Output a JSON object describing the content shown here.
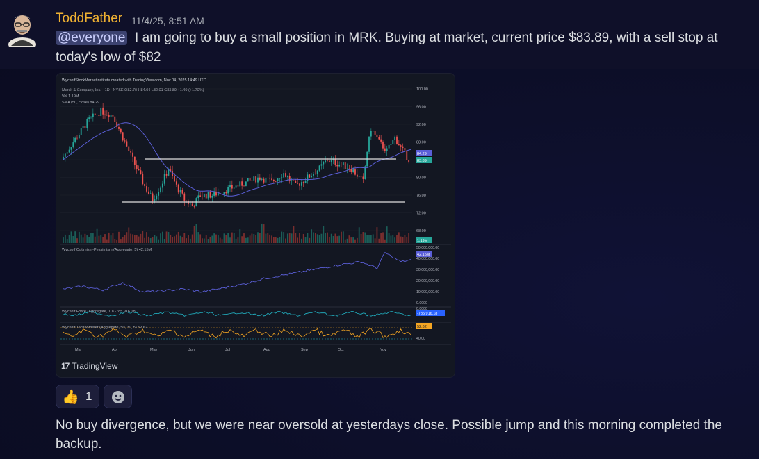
{
  "message": {
    "username": "ToddFather",
    "timestamp": "11/4/25, 8:51 AM",
    "mention": "@everyone",
    "text_line1": "I am going to buy a small position in MRK.  Buying at market, current price $83.89, with a sell stop at",
    "text_line2": "today's low of $82",
    "username_color": "#f0b232"
  },
  "embed": {
    "header": "WyckoffStockMarketInstitute created with TradingView.com, Nov 04, 2025 14:49 UTC",
    "symbol_line": "Merck & Company, Inc. · 1D · NYSE  O82.70 H84.04 L82.01 C83.89 +1.40 (+1.70%)",
    "vol_label": "Vol  1.19M",
    "sma_label": "SMA (50, close)  84.29",
    "wyckoff_op": "Wyckoff Optimism-Pessimism (Aggregate, 5)  42.15M",
    "wyckoff_force": "Wyckoff Force (Aggregate, 10)  -785,916.18",
    "wyckoff_tech": "Wyckoff Technometer (Aggregate, 50, 30, 5)  52.62",
    "price_ticks": [
      "100.00",
      "96.00",
      "92.00",
      "88.00",
      "84.00",
      "80.00",
      "76.00",
      "72.00",
      "68.00"
    ],
    "price_badges": {
      "sma": "84.29",
      "close": "83.89",
      "vol": "1.19M"
    },
    "op_ticks": [
      "50,000,000.00",
      "40,000,000.00",
      "30,000,000.00",
      "20,000,000.00",
      "10,000,000.00",
      "0.0000"
    ],
    "op_badge": "42.15M",
    "force_ticks": [
      "0.0000"
    ],
    "force_badge": "-785,916.18",
    "tech_ticks": [
      "40.00"
    ],
    "tech_badge": "52.62",
    "months": [
      "Mar",
      "Apr",
      "May",
      "Jun",
      "Jul",
      "Aug",
      "Sep",
      "Oct",
      "Nov"
    ],
    "logo_text": "TradingView",
    "logo_mark": "17"
  },
  "reactions": [
    {
      "emoji": "👍",
      "count": "1",
      "icon": "thumbs-up"
    }
  ],
  "add_reaction_icon": "smiley-icon",
  "followup": {
    "line1": "No buy divergence, but we were near oversold at yesterdays close.   Possible jump and this morning completed the",
    "line2": "backup."
  },
  "colors": {
    "sma": "#5b5fd8",
    "up": "#26a69a",
    "down": "#ef5350",
    "force": "#22b8c9",
    "tech": "#f5a623"
  }
}
